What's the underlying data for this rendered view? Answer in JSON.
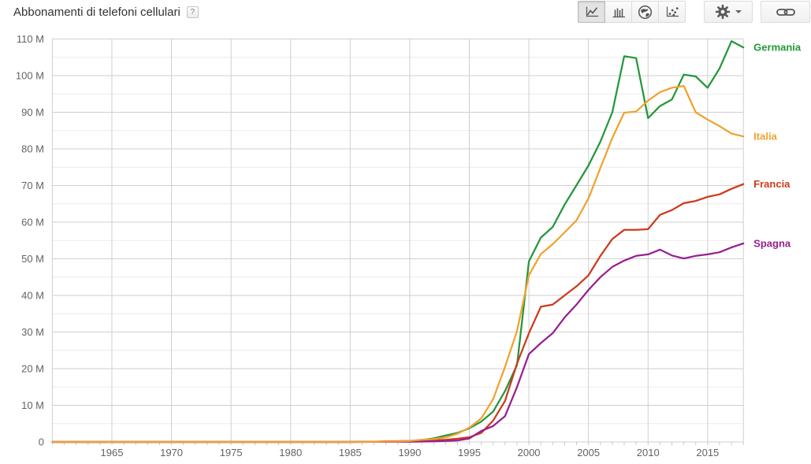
{
  "header": {
    "title": "Abbonamenti di telefoni cellulari",
    "help_badge": "?"
  },
  "toolbar": {
    "chart_type_buttons": [
      {
        "icon": "line-chart-icon",
        "selected": true
      },
      {
        "icon": "bar-chart-icon",
        "selected": false
      },
      {
        "icon": "globe-icon",
        "selected": false
      },
      {
        "icon": "scatter-chart-icon",
        "selected": false
      }
    ],
    "settings_button": {
      "icon": "gear-icon",
      "has_dropdown": true
    },
    "share_button": {
      "icon": "link-icon"
    }
  },
  "chart_data": {
    "type": "line",
    "title": "Abbonamenti di telefoni cellulari",
    "unit": "millions",
    "grid": true,
    "legend_position": "end-of-line-right",
    "ylim_millions": [
      0,
      110
    ],
    "y_major_step_millions": 10,
    "y_minor_step_millions": 5,
    "x_range_years": [
      1960,
      2018
    ],
    "y_ticks": [
      {
        "value": 0,
        "label": "0"
      },
      {
        "value": 10,
        "label": "10 M"
      },
      {
        "value": 20,
        "label": "20 M"
      },
      {
        "value": 30,
        "label": "30 M"
      },
      {
        "value": 40,
        "label": "40 M"
      },
      {
        "value": 50,
        "label": "50 M"
      },
      {
        "value": 60,
        "label": "60 M"
      },
      {
        "value": 70,
        "label": "70 M"
      },
      {
        "value": 80,
        "label": "80 M"
      },
      {
        "value": 90,
        "label": "90 M"
      },
      {
        "value": 100,
        "label": "100 M"
      },
      {
        "value": 110,
        "label": "110 M"
      }
    ],
    "x_ticks": [
      {
        "value": 1965,
        "label": "1965"
      },
      {
        "value": 1970,
        "label": "1970"
      },
      {
        "value": 1975,
        "label": "1975"
      },
      {
        "value": 1980,
        "label": "1980"
      },
      {
        "value": 1985,
        "label": "1985"
      },
      {
        "value": 1990,
        "label": "1990"
      },
      {
        "value": 1995,
        "label": "1995"
      },
      {
        "value": 2000,
        "label": "2000"
      },
      {
        "value": 2005,
        "label": "2005"
      },
      {
        "value": 2010,
        "label": "2010"
      },
      {
        "value": 2015,
        "label": "2015"
      }
    ],
    "x_years": [
      1960,
      1961,
      1962,
      1963,
      1964,
      1965,
      1966,
      1967,
      1968,
      1969,
      1970,
      1971,
      1972,
      1973,
      1974,
      1975,
      1976,
      1977,
      1978,
      1979,
      1980,
      1981,
      1982,
      1983,
      1984,
      1985,
      1986,
      1987,
      1988,
      1989,
      1990,
      1991,
      1992,
      1993,
      1994,
      1995,
      1996,
      1997,
      1998,
      1999,
      2000,
      2001,
      2002,
      2003,
      2004,
      2005,
      2006,
      2007,
      2008,
      2009,
      2010,
      2011,
      2012,
      2013,
      2014,
      2015,
      2016,
      2017,
      2018
    ],
    "series": [
      {
        "name": "Germania",
        "color": "#24973b",
        "values_millions": [
          0,
          0,
          0,
          0,
          0,
          0,
          0,
          0,
          0,
          0,
          0,
          0,
          0,
          0,
          0,
          0,
          0,
          0,
          0,
          0,
          0,
          0,
          0,
          0,
          0,
          0,
          0.03,
          0.05,
          0.1,
          0.16,
          0.27,
          0.53,
          0.97,
          1.77,
          2.48,
          3.73,
          5.55,
          8.28,
          13.9,
          21.0,
          49.3,
          55.8,
          58.7,
          64.8,
          70.1,
          75.5,
          82.0,
          90.0,
          105.3,
          104.8,
          88.4,
          91.7,
          93.5,
          100.3,
          99.8,
          96.7,
          102.0,
          109.4,
          107.7
        ]
      },
      {
        "name": "Italia",
        "color": "#f0a22f",
        "values_millions": [
          0,
          0,
          0,
          0,
          0,
          0,
          0,
          0,
          0,
          0,
          0,
          0,
          0,
          0,
          0,
          0,
          0,
          0,
          0,
          0,
          0,
          0,
          0,
          0,
          0,
          0,
          0.03,
          0.07,
          0.1,
          0.17,
          0.27,
          0.57,
          0.78,
          1.21,
          2.24,
          3.92,
          6.42,
          11.7,
          20.5,
          30.3,
          45.5,
          51.3,
          54.0,
          57.2,
          60.5,
          66.5,
          74.8,
          83.0,
          89.9,
          90.2,
          93.2,
          95.5,
          96.7,
          97.2,
          90.0,
          88.0,
          86.2,
          84.2,
          83.4
        ]
      },
      {
        "name": "Francia",
        "color": "#cd3a1d",
        "values_millions": [
          0,
          0,
          0,
          0,
          0,
          0,
          0,
          0,
          0,
          0,
          0,
          0,
          0,
          0,
          0,
          0,
          0,
          0,
          0,
          0,
          0,
          0,
          0,
          0,
          0,
          0,
          0.04,
          0.09,
          0.15,
          0.21,
          0.28,
          0.38,
          0.44,
          0.57,
          0.88,
          1.3,
          2.46,
          5.82,
          11.2,
          21.4,
          29.7,
          36.9,
          37.5,
          40.0,
          42.5,
          45.5,
          50.8,
          55.4,
          57.9,
          57.9,
          58.1,
          62.0,
          63.3,
          65.2,
          65.8,
          66.9,
          67.6,
          69.1,
          70.4
        ]
      },
      {
        "name": "Spagna",
        "color": "#96218f",
        "values_millions": [
          0,
          0,
          0,
          0,
          0,
          0,
          0,
          0,
          0,
          0,
          0,
          0,
          0,
          0,
          0,
          0,
          0,
          0,
          0,
          0,
          0,
          0,
          0,
          0,
          0,
          0,
          0.01,
          0.02,
          0.03,
          0.04,
          0.05,
          0.11,
          0.18,
          0.26,
          0.41,
          0.95,
          2.99,
          4.34,
          7.05,
          15.0,
          24.0,
          27.0,
          29.7,
          34.0,
          37.5,
          41.5,
          45.0,
          47.8,
          49.5,
          50.8,
          51.2,
          52.5,
          50.9,
          50.1,
          50.8,
          51.2,
          51.8,
          53.1,
          54.2
        ]
      }
    ]
  }
}
